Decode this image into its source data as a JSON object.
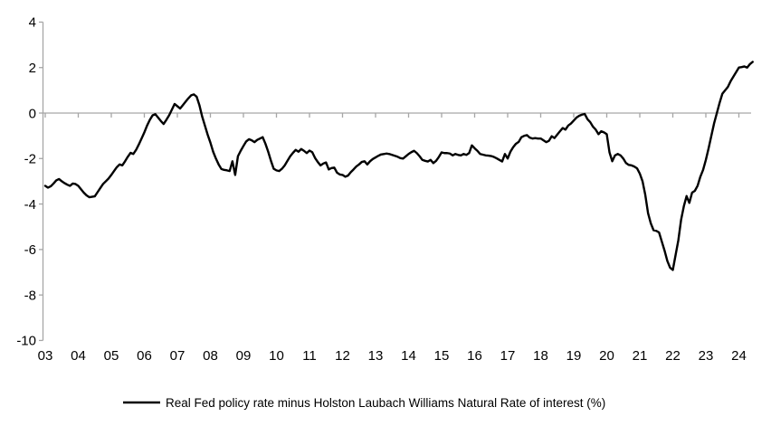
{
  "chart_data": {
    "type": "line",
    "title": "",
    "xlabel": "",
    "ylabel": "",
    "ylim": [
      -10,
      4
    ],
    "y_ticks": [
      "4",
      "2",
      "0",
      "-2",
      "-4",
      "-6",
      "-8",
      "-10"
    ],
    "y_tick_values": [
      4,
      2,
      0,
      -2,
      -4,
      -6,
      -8,
      -10
    ],
    "x_tick_labels": [
      "03",
      "04",
      "05",
      "06",
      "07",
      "08",
      "09",
      "10",
      "11",
      "12",
      "13",
      "14",
      "15",
      "16",
      "17",
      "18",
      "19",
      "20",
      "21",
      "22",
      "23",
      "24"
    ],
    "x_start_year": 2003,
    "frequency": "monthly",
    "grid": "zero-line-only",
    "legend_position": "bottom-center",
    "series": [
      {
        "name": "Real Fed policy rate minus Holston Laubach Williams Natural Rate of interest (%)",
        "color": "#000000",
        "values": [
          -3.2,
          -3.28,
          -3.22,
          -3.1,
          -2.96,
          -2.9,
          -3.0,
          -3.08,
          -3.15,
          -3.2,
          -3.1,
          -3.12,
          -3.2,
          -3.35,
          -3.5,
          -3.62,
          -3.7,
          -3.68,
          -3.66,
          -3.48,
          -3.3,
          -3.12,
          -3.0,
          -2.88,
          -2.72,
          -2.55,
          -2.38,
          -2.26,
          -2.3,
          -2.12,
          -1.92,
          -1.75,
          -1.8,
          -1.62,
          -1.38,
          -1.12,
          -0.85,
          -0.55,
          -0.3,
          -0.1,
          -0.05,
          -0.2,
          -0.35,
          -0.48,
          -0.3,
          -0.1,
          0.15,
          0.4,
          0.3,
          0.2,
          0.35,
          0.5,
          0.65,
          0.78,
          0.82,
          0.72,
          0.35,
          -0.15,
          -0.55,
          -0.95,
          -1.3,
          -1.7,
          -2.0,
          -2.26,
          -2.46,
          -2.5,
          -2.52,
          -2.55,
          -2.12,
          -2.72,
          -1.9,
          -1.66,
          -1.45,
          -1.25,
          -1.15,
          -1.2,
          -1.28,
          -1.18,
          -1.12,
          -1.06,
          -1.35,
          -1.7,
          -2.1,
          -2.45,
          -2.52,
          -2.55,
          -2.45,
          -2.3,
          -2.1,
          -1.9,
          -1.75,
          -1.62,
          -1.7,
          -1.58,
          -1.66,
          -1.76,
          -1.65,
          -1.72,
          -1.97,
          -2.15,
          -2.3,
          -2.22,
          -2.17,
          -2.48,
          -2.42,
          -2.4,
          -2.62,
          -2.7,
          -2.72,
          -2.8,
          -2.75,
          -2.6,
          -2.48,
          -2.35,
          -2.26,
          -2.15,
          -2.12,
          -2.26,
          -2.12,
          -2.02,
          -1.95,
          -1.88,
          -1.82,
          -1.8,
          -1.78,
          -1.8,
          -1.84,
          -1.88,
          -1.92,
          -1.98,
          -2.0,
          -1.9,
          -1.8,
          -1.72,
          -1.66,
          -1.76,
          -1.9,
          -2.06,
          -2.1,
          -2.13,
          -2.06,
          -2.2,
          -2.1,
          -1.93,
          -1.73,
          -1.76,
          -1.76,
          -1.78,
          -1.86,
          -1.8,
          -1.84,
          -1.86,
          -1.8,
          -1.84,
          -1.76,
          -1.42,
          -1.55,
          -1.66,
          -1.8,
          -1.83,
          -1.86,
          -1.87,
          -1.89,
          -1.93,
          -1.99,
          -2.06,
          -2.13,
          -1.8,
          -2.0,
          -1.7,
          -1.5,
          -1.35,
          -1.27,
          -1.06,
          -1.0,
          -0.97,
          -1.08,
          -1.12,
          -1.1,
          -1.12,
          -1.12,
          -1.2,
          -1.28,
          -1.22,
          -1.02,
          -1.1,
          -0.95,
          -0.8,
          -0.66,
          -0.73,
          -0.55,
          -0.46,
          -0.33,
          -0.2,
          -0.12,
          -0.07,
          -0.04,
          -0.27,
          -0.4,
          -0.6,
          -0.73,
          -0.93,
          -0.8,
          -0.85,
          -0.93,
          -1.73,
          -2.12,
          -1.86,
          -1.8,
          -1.86,
          -2.0,
          -2.2,
          -2.28,
          -2.3,
          -2.35,
          -2.43,
          -2.66,
          -3.0,
          -3.6,
          -4.4,
          -4.85,
          -5.15,
          -5.18,
          -5.25,
          -5.65,
          -6.05,
          -6.5,
          -6.8,
          -6.9,
          -6.25,
          -5.6,
          -4.7,
          -4.1,
          -3.65,
          -3.95,
          -3.5,
          -3.42,
          -3.2,
          -2.8,
          -2.5,
          -2.06,
          -1.55,
          -1.0,
          -0.45,
          0.0,
          0.45,
          0.85,
          1.0,
          1.15,
          1.4,
          1.6,
          1.8,
          2.0,
          2.02,
          2.05,
          2.0,
          2.15,
          2.25
        ]
      }
    ]
  },
  "legend": {
    "label": "Real Fed policy rate minus Holston Laubach Williams Natural Rate of interest (%)"
  },
  "colors": {
    "background": "#ffffff",
    "axis": "#a6a6a6",
    "zero_line": "#a6a6a6",
    "series_line": "#000000",
    "text": "#000000"
  }
}
